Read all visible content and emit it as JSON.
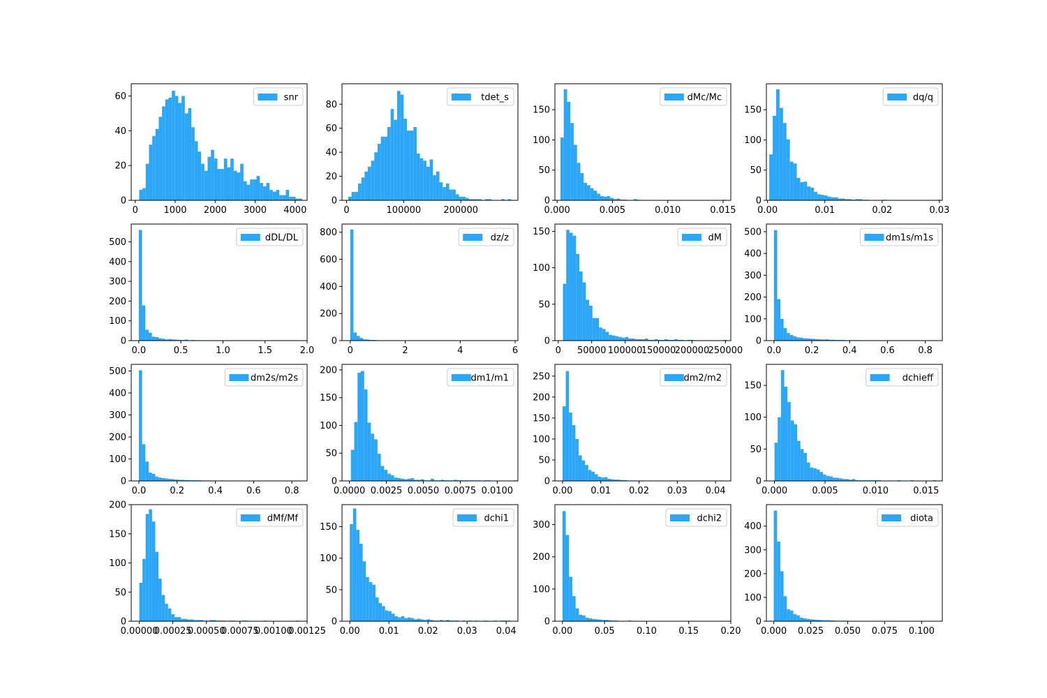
{
  "figure": {
    "bar_color": "#2ca7f8",
    "background": "#ffffff"
  },
  "chart_data": [
    {
      "type": "bar",
      "legend": "snr",
      "legend_placement": "top-right",
      "xlim": [
        -100,
        4300
      ],
      "ylim": [
        0,
        67
      ],
      "bin_start": 100,
      "bin_width": 81.5,
      "values": [
        6,
        7,
        21,
        32,
        37,
        41,
        48,
        54,
        58,
        59,
        63,
        60,
        56,
        60,
        50,
        53,
        42,
        34,
        28,
        21,
        17,
        25,
        29,
        24,
        18,
        18,
        24,
        19,
        24,
        17,
        16,
        21,
        11,
        9,
        12,
        12,
        14,
        10,
        8,
        10,
        6,
        5,
        6,
        3,
        3,
        6,
        2,
        2,
        1,
        1
      ],
      "xticks": [
        0,
        1000,
        2000,
        3000,
        4000
      ],
      "xtick_labels": [
        "0",
        "1000",
        "2000",
        "3000",
        "4000"
      ],
      "yticks": [
        0,
        20,
        40,
        60
      ],
      "ytick_labels": [
        "0",
        "20",
        "40",
        "60"
      ]
    },
    {
      "type": "bar",
      "legend": "tdet_s",
      "legend_placement": "top-right",
      "xlim": [
        -8000,
        300000
      ],
      "ylim": [
        0,
        97
      ],
      "bin_start": 3000,
      "bin_width": 5700,
      "values": [
        3,
        7,
        7,
        14,
        19,
        24,
        28,
        33,
        40,
        47,
        53,
        53,
        61,
        76,
        67,
        91,
        88,
        68,
        58,
        58,
        61,
        39,
        35,
        33,
        28,
        34,
        21,
        24,
        15,
        11,
        14,
        9,
        9,
        5,
        3,
        3,
        2,
        1,
        1,
        1,
        1,
        0,
        1,
        1,
        0,
        0,
        0,
        1,
        0,
        1
      ],
      "xticks": [
        0,
        100000,
        200000
      ],
      "xtick_labels": [
        "0",
        "100000",
        "200000"
      ],
      "yticks": [
        0,
        20,
        40,
        60,
        80
      ],
      "ytick_labels": [
        "0",
        "20",
        "40",
        "60",
        "80"
      ]
    },
    {
      "type": "bar",
      "legend": "dMc/Mc",
      "legend_placement": "top-right",
      "xlim": [
        -0.0002,
        0.0157
      ],
      "ylim": [
        0,
        193
      ],
      "bin_start": 0.0003,
      "bin_width": 0.0003,
      "values": [
        104,
        184,
        163,
        128,
        92,
        62,
        45,
        29,
        25,
        20,
        16,
        11,
        7,
        6,
        7,
        4,
        2,
        3,
        1,
        1,
        0,
        0,
        2,
        1,
        0,
        0,
        0,
        0,
        0,
        0,
        0,
        0,
        0,
        0,
        0,
        0,
        0,
        0,
        0,
        0,
        0,
        0,
        0,
        0,
        0,
        0,
        0,
        0,
        0,
        1
      ],
      "xticks": [
        0,
        0.005,
        0.01,
        0.015
      ],
      "xtick_labels": [
        "0.000",
        "0.005",
        "0.010",
        "0.015"
      ],
      "yticks": [
        0,
        50,
        100,
        150
      ],
      "ytick_labels": [
        "0",
        "50",
        "100",
        "150"
      ]
    },
    {
      "type": "bar",
      "legend": "dq/q",
      "legend_placement": "top-right",
      "xlim": [
        -0.0002,
        0.0305
      ],
      "ylim": [
        0,
        193
      ],
      "bin_start": 0.0003,
      "bin_width": 0.0006,
      "values": [
        76,
        140,
        184,
        153,
        128,
        101,
        64,
        61,
        37,
        30,
        31,
        23,
        21,
        14,
        10,
        9,
        8,
        6,
        5,
        5,
        3,
        3,
        2,
        2,
        1,
        2,
        2,
        1,
        1,
        0,
        0,
        0,
        0,
        1,
        0,
        0,
        0,
        0,
        0,
        0,
        0,
        0,
        0,
        0,
        0,
        0,
        0,
        0,
        0,
        1
      ],
      "xticks": [
        0,
        0.01,
        0.02,
        0.03
      ],
      "xtick_labels": [
        "0.00",
        "0.01",
        "0.02",
        "0.03"
      ],
      "yticks": [
        0,
        50,
        100,
        150
      ],
      "ytick_labels": [
        "0",
        "50",
        "100",
        "150"
      ]
    },
    {
      "type": "bar",
      "legend": "dDL/DL",
      "legend_placement": "top-right",
      "xlim": [
        -0.09,
        2.0
      ],
      "ylim": [
        0,
        590
      ],
      "bin_start": 0.0,
      "bin_width": 0.039,
      "values": [
        560,
        178,
        55,
        40,
        20,
        18,
        12,
        10,
        6,
        8,
        6,
        5,
        4,
        3,
        5,
        2,
        3,
        2,
        2,
        1,
        2,
        1,
        1,
        1,
        2,
        1,
        1,
        0,
        0,
        1,
        0,
        0,
        0,
        0,
        0,
        0,
        0,
        0,
        0,
        0,
        0,
        0,
        0,
        0,
        0,
        0,
        0,
        0,
        0,
        1
      ],
      "xticks": [
        0,
        0.5,
        1.0,
        1.5,
        2.0
      ],
      "xtick_labels": [
        "0.0",
        "0.5",
        "1.0",
        "1.5",
        "2.0"
      ],
      "yticks": [
        0,
        100,
        200,
        300,
        400,
        500
      ],
      "ytick_labels": [
        "0",
        "100",
        "200",
        "300",
        "400",
        "500"
      ]
    },
    {
      "type": "bar",
      "legend": "dz/z",
      "legend_placement": "top-right",
      "xlim": [
        -0.3,
        6.1
      ],
      "ylim": [
        0,
        860
      ],
      "bin_start": 0.0,
      "bin_width": 0.116,
      "values": [
        820,
        60,
        35,
        20,
        10,
        8,
        5,
        5,
        3,
        3,
        2,
        2,
        2,
        1,
        1,
        1,
        1,
        0,
        0,
        0,
        0,
        0,
        0,
        0,
        0,
        0,
        0,
        0,
        0,
        0,
        0,
        0,
        0,
        0,
        0,
        0,
        0,
        0,
        0,
        0,
        0,
        0,
        0,
        0,
        0,
        0,
        0,
        0,
        0,
        1
      ],
      "xticks": [
        0,
        2,
        4,
        6
      ],
      "xtick_labels": [
        "0",
        "2",
        "4",
        "6"
      ],
      "yticks": [
        0,
        200,
        400,
        600,
        800
      ],
      "ytick_labels": [
        "0",
        "200",
        "400",
        "600",
        "800"
      ]
    },
    {
      "type": "bar",
      "legend": "dM",
      "legend_placement": "top-right",
      "xlim": [
        -5000,
        258000
      ],
      "ylim": [
        0,
        160
      ],
      "bin_start": 7000,
      "bin_width": 4900,
      "values": [
        78,
        152,
        148,
        144,
        119,
        95,
        80,
        56,
        48,
        31,
        31,
        18,
        16,
        12,
        8,
        7,
        6,
        5,
        4,
        5,
        3,
        3,
        2,
        2,
        2,
        3,
        1,
        1,
        2,
        1,
        1,
        2,
        1,
        1,
        2,
        1,
        1,
        0,
        1,
        1,
        0,
        0,
        0,
        0,
        0,
        0,
        0,
        0,
        0,
        1
      ],
      "xticks": [
        0,
        50000,
        100000,
        150000,
        200000,
        250000
      ],
      "xtick_labels": [
        "0",
        "50000",
        "100000",
        "150000",
        "200000",
        "250000"
      ],
      "yticks": [
        0,
        50,
        100,
        150
      ],
      "ytick_labels": [
        "0",
        "50",
        "100",
        "150"
      ]
    },
    {
      "type": "bar",
      "legend": "dm1s/m1s",
      "legend_placement": "top-right",
      "xlim": [
        -0.04,
        0.89
      ],
      "ylim": [
        0,
        535
      ],
      "bin_start": 0.0,
      "bin_width": 0.017,
      "values": [
        507,
        190,
        100,
        58,
        35,
        26,
        20,
        15,
        14,
        11,
        10,
        9,
        8,
        7,
        6,
        5,
        6,
        4,
        4,
        3,
        3,
        3,
        2,
        2,
        2,
        2,
        2,
        1,
        1,
        1,
        0,
        0,
        0,
        0,
        0,
        0,
        0,
        0,
        0,
        0,
        0,
        0,
        0,
        0,
        0,
        0,
        0,
        0,
        0,
        1
      ],
      "xticks": [
        0,
        0.2,
        0.4,
        0.6,
        0.8
      ],
      "xtick_labels": [
        "0.0",
        "0.2",
        "0.4",
        "0.6",
        "0.8"
      ],
      "yticks": [
        0,
        100,
        200,
        300,
        400,
        500
      ],
      "ytick_labels": [
        "0",
        "100",
        "200",
        "300",
        "400",
        "500"
      ]
    },
    {
      "type": "bar",
      "legend": "dm2s/m2s",
      "legend_placement": "top-right",
      "xlim": [
        -0.04,
        0.88
      ],
      "ylim": [
        0,
        530
      ],
      "bin_start": 0.0,
      "bin_width": 0.017,
      "values": [
        503,
        167,
        88,
        38,
        32,
        20,
        15,
        13,
        11,
        9,
        8,
        6,
        5,
        5,
        4,
        4,
        3,
        3,
        3,
        2,
        2,
        2,
        2,
        1,
        1,
        2,
        1,
        1,
        1,
        1,
        0,
        0,
        0,
        0,
        0,
        0,
        0,
        0,
        0,
        0,
        0,
        0,
        0,
        0,
        0,
        0,
        0,
        0,
        0,
        1
      ],
      "xticks": [
        0,
        0.2,
        0.4,
        0.6,
        0.8
      ],
      "xtick_labels": [
        "0.0",
        "0.2",
        "0.4",
        "0.6",
        "0.8"
      ],
      "yticks": [
        0,
        100,
        200,
        300,
        400,
        500
      ],
      "ytick_labels": [
        "0",
        "100",
        "200",
        "300",
        "400",
        "500"
      ]
    },
    {
      "type": "bar",
      "legend": "dm1/m1",
      "legend_placement": "top-right",
      "xlim": [
        -0.0005,
        0.0114
      ],
      "ylim": [
        0,
        210
      ],
      "bin_start": 0.0001,
      "bin_width": 0.000225,
      "values": [
        56,
        106,
        195,
        198,
        165,
        105,
        85,
        75,
        49,
        27,
        20,
        13,
        10,
        6,
        5,
        4,
        3,
        4,
        5,
        2,
        2,
        3,
        1,
        1,
        4,
        1,
        1,
        2,
        1,
        1,
        1,
        2,
        1,
        1,
        1,
        1,
        1,
        1,
        1,
        0,
        1,
        1,
        0,
        0,
        0,
        0,
        0,
        0,
        0,
        1
      ],
      "xticks": [
        0,
        0.0025,
        0.005,
        0.0075,
        0.01
      ],
      "xtick_labels": [
        "0.0000",
        "0.0025",
        "0.0050",
        "0.0075",
        "0.0100"
      ],
      "yticks": [
        0,
        50,
        100,
        150,
        200
      ],
      "ytick_labels": [
        "0",
        "50",
        "100",
        "150",
        "200"
      ]
    },
    {
      "type": "bar",
      "legend": "dm2/m2",
      "legend_placement": "top-right",
      "xlim": [
        -0.002,
        0.044
      ],
      "ylim": [
        0,
        278
      ],
      "bin_start": 0.0,
      "bin_width": 0.00084,
      "values": [
        178,
        262,
        163,
        133,
        100,
        61,
        49,
        38,
        26,
        22,
        16,
        10,
        8,
        9,
        5,
        4,
        3,
        3,
        2,
        2,
        1,
        1,
        1,
        0,
        1,
        1,
        0,
        0,
        0,
        0,
        0,
        0,
        0,
        0,
        0,
        0,
        0,
        0,
        0,
        0,
        0,
        0,
        0,
        0,
        0,
        0,
        0,
        0,
        0,
        1
      ],
      "xticks": [
        0,
        0.01,
        0.02,
        0.03,
        0.04
      ],
      "xtick_labels": [
        "0.00",
        "0.01",
        "0.02",
        "0.03",
        "0.04"
      ],
      "yticks": [
        0,
        50,
        100,
        150,
        200,
        250
      ],
      "ytick_labels": [
        "0",
        "50",
        "100",
        "150",
        "200",
        "250"
      ]
    },
    {
      "type": "bar",
      "legend": "dchieff",
      "legend_placement": "top-right",
      "xlim": [
        -0.0008,
        0.0166
      ],
      "ylim": [
        0,
        183
      ],
      "bin_start": 0.0,
      "bin_width": 0.00032,
      "values": [
        60,
        100,
        174,
        148,
        124,
        95,
        89,
        63,
        50,
        44,
        29,
        21,
        20,
        18,
        14,
        10,
        8,
        7,
        5,
        5,
        4,
        3,
        3,
        2,
        3,
        1,
        1,
        1,
        1,
        1,
        1,
        1,
        1,
        0,
        0,
        0,
        0,
        0,
        1,
        0,
        0,
        0,
        1,
        0,
        0,
        0,
        0,
        0,
        0,
        1
      ],
      "xticks": [
        0,
        0.005,
        0.01,
        0.015
      ],
      "xtick_labels": [
        "0.000",
        "0.005",
        "0.010",
        "0.015"
      ],
      "yticks": [
        0,
        50,
        100,
        150
      ],
      "ytick_labels": [
        "0",
        "50",
        "100",
        "150"
      ]
    },
    {
      "type": "bar",
      "legend": "dMf/Mf",
      "legend_placement": "top-right",
      "xlim": [
        -6e-05,
        0.00125
      ],
      "ylim": [
        0,
        200
      ],
      "bin_start": 0.0,
      "bin_width": 2.38e-05,
      "values": [
        66,
        107,
        184,
        192,
        171,
        119,
        73,
        45,
        30,
        22,
        12,
        7,
        7,
        4,
        4,
        3,
        3,
        2,
        2,
        2,
        1,
        1,
        2,
        2,
        1,
        1,
        1,
        0,
        1,
        1,
        0,
        0,
        1,
        1,
        0,
        0,
        0,
        0,
        0,
        1,
        0,
        0,
        0,
        0,
        0,
        0,
        0,
        0,
        0,
        1
      ],
      "xticks": [
        0,
        0.00025,
        0.0005,
        0.00075,
        0.001,
        0.00125
      ],
      "xtick_labels": [
        "0.00000",
        "0.00025",
        "0.00050",
        "0.00075",
        "0.00100",
        "0.00125"
      ],
      "yticks": [
        0,
        50,
        100,
        150,
        200
      ],
      "ytick_labels": [
        "0",
        "50",
        "100",
        "150",
        "200"
      ]
    },
    {
      "type": "bar",
      "legend": "dchi1",
      "legend_placement": "top-right",
      "xlim": [
        -0.002,
        0.043
      ],
      "ylim": [
        0,
        185
      ],
      "bin_start": 0.0,
      "bin_width": 0.00082,
      "values": [
        154,
        179,
        145,
        123,
        95,
        70,
        62,
        58,
        38,
        29,
        24,
        17,
        16,
        12,
        8,
        6,
        8,
        5,
        6,
        5,
        3,
        4,
        3,
        2,
        3,
        2,
        1,
        1,
        2,
        1,
        2,
        1,
        1,
        1,
        0,
        1,
        0,
        1,
        0,
        1,
        0,
        0,
        1,
        0,
        0,
        1,
        0,
        1,
        1,
        1
      ],
      "xticks": [
        0,
        0.01,
        0.02,
        0.03,
        0.04
      ],
      "xtick_labels": [
        "0.00",
        "0.01",
        "0.02",
        "0.03",
        "0.04"
      ],
      "yticks": [
        0,
        50,
        100,
        150
      ],
      "ytick_labels": [
        "0",
        "50",
        "100",
        "150"
      ]
    },
    {
      "type": "bar",
      "legend": "dchi2",
      "legend_placement": "top-right",
      "xlim": [
        -0.009,
        0.2
      ],
      "ylim": [
        0,
        362
      ],
      "bin_start": 0.0,
      "bin_width": 0.0039,
      "values": [
        342,
        268,
        138,
        78,
        40,
        20,
        18,
        11,
        9,
        7,
        6,
        5,
        4,
        4,
        3,
        2,
        2,
        1,
        1,
        1,
        2,
        1,
        0,
        1,
        0,
        0,
        0,
        1,
        0,
        0,
        0,
        0,
        0,
        0,
        0,
        0,
        0,
        0,
        0,
        0,
        0,
        0,
        0,
        0,
        0,
        0,
        0,
        0,
        0,
        1
      ],
      "xticks": [
        0,
        0.05,
        0.1,
        0.15,
        0.2
      ],
      "xtick_labels": [
        "0.00",
        "0.05",
        "0.10",
        "0.15",
        "0.20"
      ],
      "yticks": [
        0,
        100,
        200,
        300
      ],
      "ytick_labels": [
        "0",
        "100",
        "200",
        "300"
      ]
    },
    {
      "type": "bar",
      "legend": "diota",
      "legend_placement": "top-right",
      "xlim": [
        -0.005,
        0.114
      ],
      "ylim": [
        0,
        490
      ],
      "bin_start": 0.0,
      "bin_width": 0.0022,
      "values": [
        465,
        335,
        210,
        105,
        50,
        45,
        30,
        25,
        15,
        12,
        10,
        8,
        7,
        6,
        5,
        4,
        4,
        3,
        3,
        2,
        2,
        2,
        2,
        1,
        1,
        1,
        1,
        1,
        0,
        1,
        0,
        1,
        0,
        1,
        0,
        0,
        0,
        0,
        0,
        0,
        0,
        0,
        0,
        0,
        0,
        0,
        0,
        0,
        0,
        1
      ],
      "xticks": [
        0,
        0.025,
        0.05,
        0.075,
        0.1
      ],
      "xtick_labels": [
        "0.000",
        "0.025",
        "0.050",
        "0.075",
        "0.100"
      ],
      "yticks": [
        0,
        100,
        200,
        300,
        400
      ],
      "ytick_labels": [
        "0",
        "100",
        "200",
        "300",
        "400"
      ]
    }
  ]
}
